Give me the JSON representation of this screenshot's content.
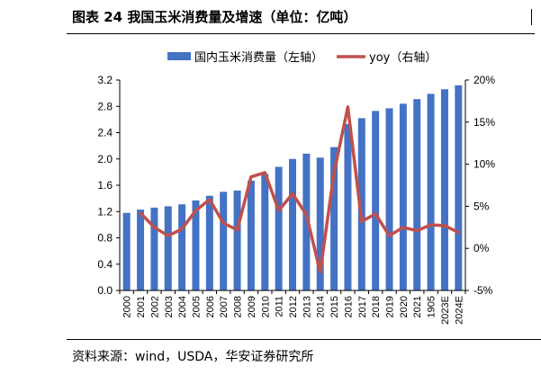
{
  "figure": {
    "title": "图表 24 我国玉米消费量及增速（单位：亿吨）",
    "source": "资料来源：wind，USDA，华安证券研究所"
  },
  "colors": {
    "bar": "#4472c4",
    "line": "#c0504d"
  },
  "chart_data": {
    "type": "bar",
    "categories": [
      "2000",
      "2001",
      "2002",
      "2003",
      "2004",
      "2005",
      "2006",
      "2007",
      "2008",
      "2009",
      "2010",
      "2011",
      "2012",
      "2013",
      "2014",
      "2015",
      "2016",
      "2017",
      "2018",
      "2019",
      "2020",
      "2021",
      "1905",
      "2023E",
      "2024E"
    ],
    "series": [
      {
        "name": "国内玉米消费量（左轴）",
        "type": "bar",
        "axis": "left",
        "values": [
          1.18,
          1.23,
          1.26,
          1.28,
          1.31,
          1.37,
          1.44,
          1.5,
          1.52,
          1.67,
          1.77,
          1.88,
          2.0,
          2.08,
          2.02,
          2.18,
          2.53,
          2.62,
          2.73,
          2.77,
          2.84,
          2.91,
          2.99,
          3.06,
          3.12
        ]
      },
      {
        "name": "yoy（右轴）",
        "type": "line",
        "axis": "right",
        "values": [
          null,
          4.2,
          2.5,
          1.5,
          2.3,
          4.5,
          5.8,
          3.0,
          2.2,
          8.5,
          9.0,
          4.5,
          6.5,
          4.0,
          -2.8,
          9.0,
          16.8,
          3.2,
          4.1,
          1.5,
          2.5,
          2.1,
          2.8,
          2.7,
          1.9
        ]
      }
    ],
    "y_left": {
      "ticks": [
        "0.0",
        "0.4",
        "0.8",
        "1.2",
        "1.6",
        "2.0",
        "2.4",
        "2.8",
        "3.2"
      ],
      "min": 0,
      "max": 3.2
    },
    "y_right": {
      "ticks": [
        "-5%",
        "0%",
        "5%",
        "10%",
        "15%",
        "20%"
      ],
      "min": -5,
      "max": 20
    },
    "legend_position": "top",
    "grid": false
  }
}
